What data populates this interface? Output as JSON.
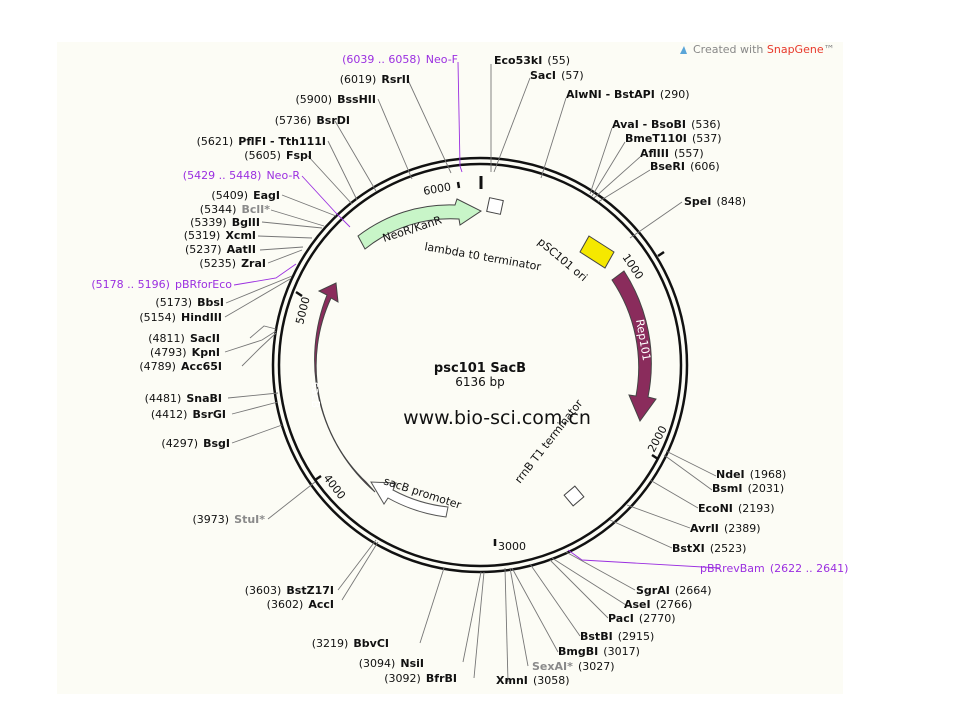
{
  "plasmid": {
    "name": "psc101 SacB",
    "length_label": "6136 bp",
    "watermark": "www.bio-sci.com.cn"
  },
  "credit": {
    "prefix": "Created with ",
    "brand": "SnapGene",
    "tm": "™"
  },
  "ticks": [
    "1000",
    "2000",
    "3000",
    "4000",
    "5000",
    "6000"
  ],
  "features": [
    {
      "label": "NeoR/KanR",
      "color": "#c8f5c8"
    },
    {
      "label": "lambda t0 terminator",
      "color": "#ffffff"
    },
    {
      "label": "pSC101 ori",
      "color": "#f5e800"
    },
    {
      "label": "Rep101",
      "color": "#8a2c5c"
    },
    {
      "label": "rrnB T1 terminator",
      "color": "#ffffff"
    },
    {
      "label": "sacB promoter",
      "color": "#ffffff"
    },
    {
      "label": "sacB",
      "color": "#8a2c5c"
    }
  ],
  "sites": [
    {
      "name": "Eco53kI",
      "pos": "(55)"
    },
    {
      "name": "SacI",
      "pos": "(57)"
    },
    {
      "name": "AlwNI - BstAPI",
      "pos": "(290)"
    },
    {
      "name": "AvaI - BsoBI",
      "pos": "(536)"
    },
    {
      "name": "BmeT110I",
      "pos": "(537)"
    },
    {
      "name": "AflIII",
      "pos": "(557)"
    },
    {
      "name": "BseRI",
      "pos": "(606)"
    },
    {
      "name": "SpeI",
      "pos": "(848)"
    },
    {
      "name": "NdeI",
      "pos": "(1968)"
    },
    {
      "name": "BsmI",
      "pos": "(2031)"
    },
    {
      "name": "EcoNI",
      "pos": "(2193)"
    },
    {
      "name": "AvrII",
      "pos": "(2389)"
    },
    {
      "name": "BstXI",
      "pos": "(2523)"
    },
    {
      "name": "pBRrevBam",
      "pos": "(2622 .. 2641)",
      "primer": true
    },
    {
      "name": "SgrAI",
      "pos": "(2664)"
    },
    {
      "name": "AseI",
      "pos": "(2766)"
    },
    {
      "name": "PacI",
      "pos": "(2770)"
    },
    {
      "name": "BstBI",
      "pos": "(2915)"
    },
    {
      "name": "BmgBI",
      "pos": "(3017)"
    },
    {
      "name": "SexAI*",
      "pos": "(3027)",
      "grey": true
    },
    {
      "name": "XmnI",
      "pos": "(3058)"
    },
    {
      "name": "BfrBI",
      "pos": "(3092)"
    },
    {
      "name": "NsiI",
      "pos": "(3094)"
    },
    {
      "name": "BbvCI",
      "pos": "(3219)"
    },
    {
      "name": "AccI",
      "pos": "(3602)"
    },
    {
      "name": "BstZ17I",
      "pos": "(3603)"
    },
    {
      "name": "StuI*",
      "pos": "(3973)",
      "grey": true
    },
    {
      "name": "BsgI",
      "pos": "(4297)"
    },
    {
      "name": "BsrGI",
      "pos": "(4412)"
    },
    {
      "name": "SnaBI",
      "pos": "(4481)"
    },
    {
      "name": "Acc65I",
      "pos": "(4789)"
    },
    {
      "name": "KpnI",
      "pos": "(4793)"
    },
    {
      "name": "SacII",
      "pos": "(4811)"
    },
    {
      "name": "HindIII",
      "pos": "(5154)"
    },
    {
      "name": "BbsI",
      "pos": "(5173)"
    },
    {
      "name": "pBRforEco",
      "pos": "(5178 .. 5196)",
      "primer": true
    },
    {
      "name": "ZraI",
      "pos": "(5235)"
    },
    {
      "name": "AatII",
      "pos": "(5237)"
    },
    {
      "name": "XcmI",
      "pos": "(5319)"
    },
    {
      "name": "BglII",
      "pos": "(5339)"
    },
    {
      "name": "BclI*",
      "pos": "(5344)",
      "grey": true
    },
    {
      "name": "EagI",
      "pos": "(5409)"
    },
    {
      "name": "Neo-R",
      "pos": "(5429 .. 5448)",
      "primer": true
    },
    {
      "name": "FspI",
      "pos": "(5605)"
    },
    {
      "name": "PflFI - Tth111I",
      "pos": "(5621)"
    },
    {
      "name": "BsrDI",
      "pos": "(5736)"
    },
    {
      "name": "BssHII",
      "pos": "(5900)"
    },
    {
      "name": "RsrII",
      "pos": "(6019)"
    },
    {
      "name": "Neo-F",
      "pos": "(6039 .. 6058)",
      "primer": true
    }
  ]
}
